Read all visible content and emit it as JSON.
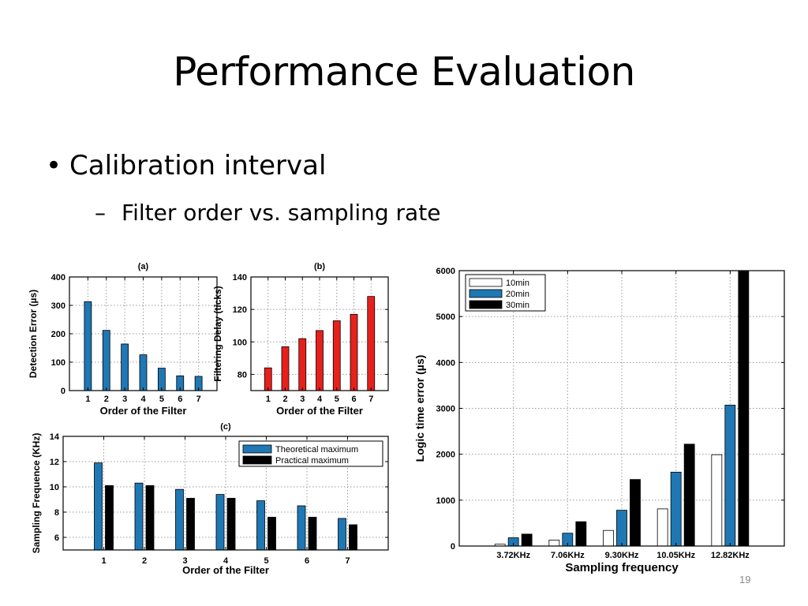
{
  "slide": {
    "title": "Performance Evaluation",
    "bullet": "Calibration interval",
    "subbullet": "Filter order vs. sampling rate",
    "page_number": "19"
  },
  "chart_data": [
    {
      "id": "a",
      "type": "bar",
      "title": "(a)",
      "xlabel": "Order of the Filter",
      "ylabel": "Detection Error (µs)",
      "categories": [
        "1",
        "2",
        "3",
        "4",
        "5",
        "6",
        "7"
      ],
      "series": [
        {
          "values": [
            313,
            212,
            164,
            126,
            79,
            52,
            50
          ],
          "color": "#1f77b4"
        }
      ],
      "ylim": [
        0,
        400
      ],
      "yticks": [
        0,
        100,
        200,
        300,
        400
      ],
      "grid": true
    },
    {
      "id": "b",
      "type": "bar",
      "title": "(b)",
      "xlabel": "Order of the Filter",
      "ylabel": "Filtering Delay (ticks)",
      "categories": [
        "1",
        "2",
        "3",
        "4",
        "5",
        "6",
        "7"
      ],
      "series": [
        {
          "values": [
            84,
            97,
            102,
            107,
            113,
            117,
            128
          ],
          "color": "#e8201c"
        }
      ],
      "ylim": [
        70,
        140
      ],
      "yticks": [
        80,
        100,
        120,
        140
      ],
      "grid": true
    },
    {
      "id": "c",
      "type": "bar",
      "title": "(c)",
      "xlabel": "Order of the Filter",
      "ylabel": "Sampling Frequence (KHz)",
      "categories": [
        "1",
        "2",
        "3",
        "4",
        "5",
        "6",
        "7"
      ],
      "series": [
        {
          "name": "Theoretical maximum",
          "values": [
            11.9,
            10.3,
            9.8,
            9.4,
            8.9,
            8.5,
            7.5
          ],
          "color": "#1f77b4"
        },
        {
          "name": "Practical maximum",
          "values": [
            10.1,
            10.1,
            9.1,
            9.1,
            7.6,
            7.6,
            7.0
          ],
          "color": "#000000"
        }
      ],
      "ylim": [
        5,
        14
      ],
      "yticks": [
        6,
        8,
        10,
        12,
        14
      ],
      "legend": "top-right",
      "grid": true
    },
    {
      "id": "d",
      "type": "bar",
      "title": "",
      "xlabel": "Sampling frequency",
      "ylabel": "Logic time error (µs)",
      "categories": [
        "3.72KHz",
        "7.06KHz",
        "9.30KHz",
        "10.05KHz",
        "12.82KHz"
      ],
      "series": [
        {
          "name": "10min",
          "values": [
            40,
            130,
            340,
            810,
            1990
          ],
          "color": "#ffffff"
        },
        {
          "name": "20min",
          "values": [
            180,
            280,
            780,
            1610,
            3070
          ],
          "color": "#1f77b4"
        },
        {
          "name": "30min",
          "values": [
            260,
            530,
            1450,
            2220,
            6000
          ],
          "color": "#000000"
        }
      ],
      "ylim": [
        0,
        6000
      ],
      "yticks": [
        0,
        1000,
        2000,
        3000,
        4000,
        5000,
        6000
      ],
      "legend": "top-left",
      "grid": true
    }
  ]
}
